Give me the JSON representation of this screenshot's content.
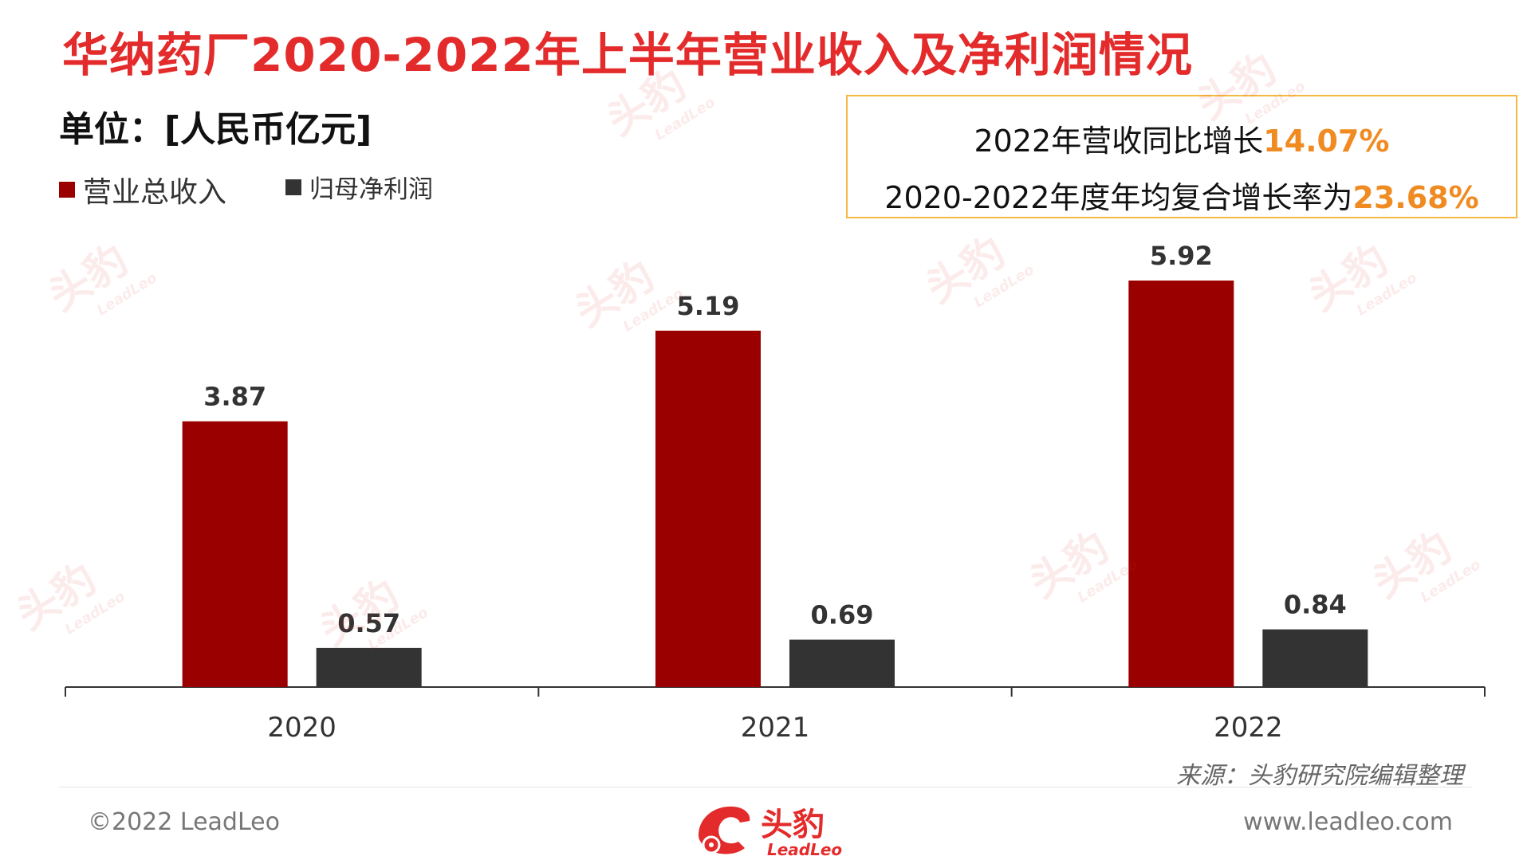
{
  "title": "华纳药厂2020-2022年上半年营业收入及净利润情况",
  "unit_label": "单位：[人民币亿元]",
  "callout": {
    "line1_prefix": "2022年营收同比增长",
    "line1_value": "14.07%",
    "line2_prefix": "2020-2022年度年均复合增长率为",
    "line2_value": "23.68%"
  },
  "source": "来源：头豹研究院编辑整理",
  "footer": {
    "copyright": "©2022 LeadLeo",
    "website": "www.leadleo.com",
    "logo_cn": "头豹",
    "logo_en": "LeadLeo"
  },
  "watermark": {
    "cn": "头豹",
    "en": "LeadLeo"
  },
  "colors": {
    "revenue": "#9b0000",
    "profit": "#333333",
    "title": "#e42b2b",
    "highlight": "#f08b22",
    "callout_border": "#f5b942"
  },
  "chart_data": {
    "type": "bar",
    "categories": [
      "2020",
      "2021",
      "2022"
    ],
    "series": [
      {
        "name": "营业总收入",
        "values": [
          3.87,
          5.19,
          5.92
        ],
        "color": "#9b0000"
      },
      {
        "name": "归母净利润",
        "values": [
          0.57,
          0.69,
          0.84
        ],
        "color": "#333333"
      }
    ],
    "data_labels": [
      [
        "3.87",
        "5.19",
        "5.92"
      ],
      [
        "0.57",
        "0.69",
        "0.84"
      ]
    ],
    "ylim": [
      0,
      6.5
    ],
    "grid": false,
    "legend_position": "top-left"
  }
}
